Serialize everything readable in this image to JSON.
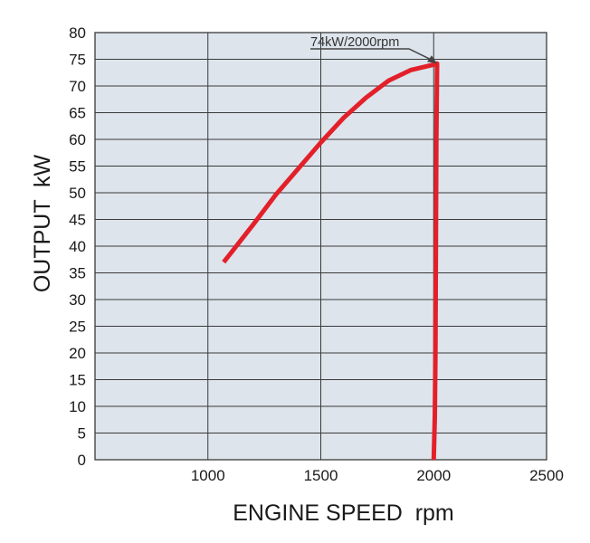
{
  "chart_data": {
    "type": "line",
    "title": "",
    "xlabel": "ENGINE SPEED  rpm",
    "ylabel": "OUTPUT  kW",
    "xlim": [
      500,
      2500
    ],
    "ylim": [
      0,
      80
    ],
    "x_ticks": [
      1000,
      1500,
      2000,
      2500
    ],
    "y_ticks": [
      0,
      5,
      10,
      15,
      20,
      25,
      30,
      35,
      40,
      45,
      50,
      55,
      60,
      65,
      70,
      75,
      80
    ],
    "grid": true,
    "colors": {
      "plot_background": "#dde4ec",
      "line": "#e3202a",
      "grid": "#3a3a3a"
    },
    "series": [
      {
        "x": [
          1070,
          1200,
          1300,
          1400,
          1500,
          1600,
          1700,
          1800,
          1900,
          2000,
          2015,
          2012,
          2010,
          2008,
          2005,
          2000
        ],
        "y": [
          37,
          44,
          49.6,
          54.5,
          59.4,
          64,
          67.8,
          71,
          73,
          74,
          74.2,
          60,
          40,
          20,
          8,
          0
        ]
      }
    ],
    "annotations": [
      {
        "text": "74kW/2000rpm",
        "x": 2015,
        "y": 74.2
      }
    ]
  }
}
